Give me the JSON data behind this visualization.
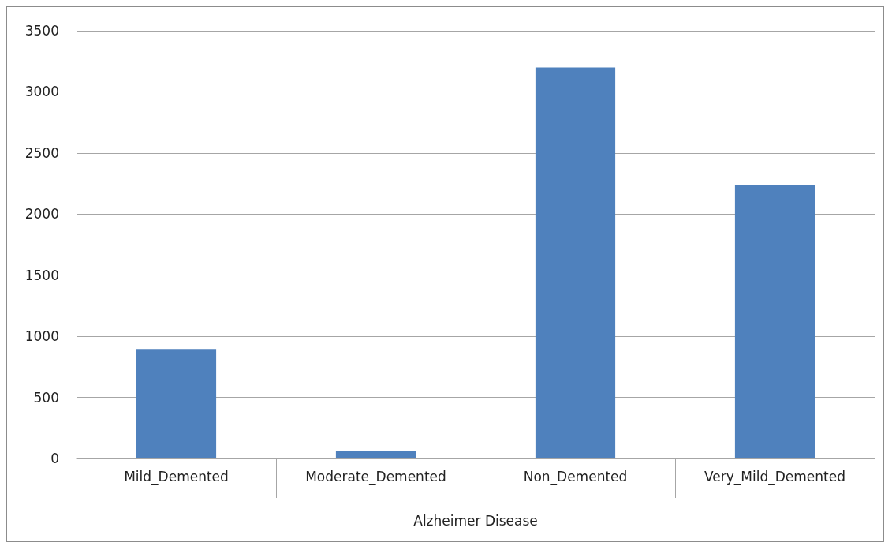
{
  "chart_data": {
    "type": "bar",
    "xlabel": "Alzheimer Disease",
    "categories": [
      "Mild_Demented",
      "Moderate_Demented",
      "Non_Demented",
      "Very_Mild_Demented"
    ],
    "values": [
      896,
      64,
      3200,
      2240
    ],
    "color": "#4f81bd",
    "ylim": [
      0,
      3500
    ],
    "yticks": [
      0,
      500,
      1000,
      1500,
      2000,
      2500,
      3000,
      3500
    ],
    "grid": "y"
  }
}
